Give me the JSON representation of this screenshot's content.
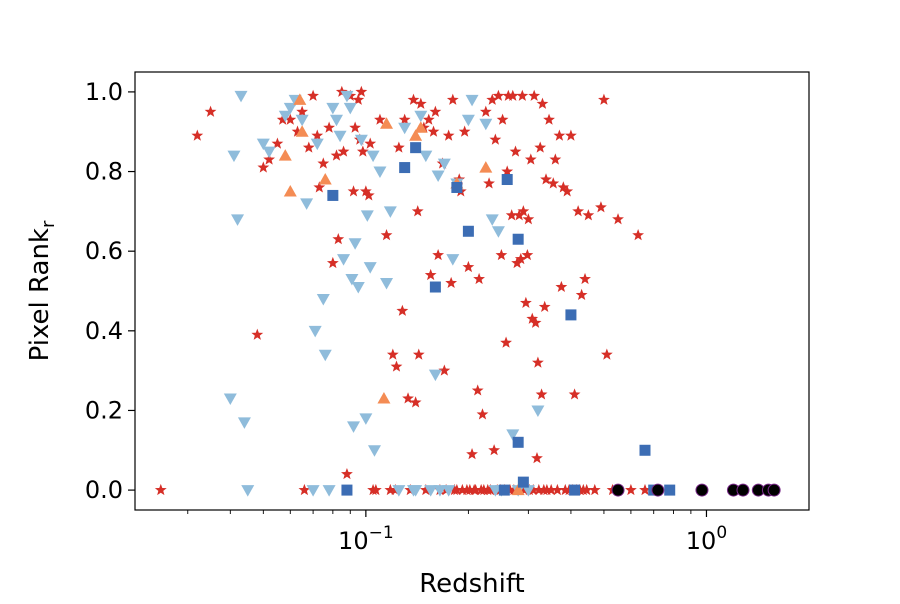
{
  "chart_data": {
    "type": "scatter",
    "title": "",
    "xlabel": "Redshift",
    "ylabel_main": "Pixel Rank",
    "ylabel_sub": "r",
    "xscale": "log",
    "xlim": [
      0.021,
      2.0
    ],
    "ylim": [
      -0.05,
      1.05
    ],
    "legend": "none",
    "grid": false,
    "y_ticks": [
      {
        "value": 0.0,
        "label": "0.0"
      },
      {
        "value": 0.2,
        "label": "0.2"
      },
      {
        "value": 0.4,
        "label": "0.4"
      },
      {
        "value": 0.6,
        "label": "0.6"
      },
      {
        "value": 0.8,
        "label": "0.8"
      },
      {
        "value": 1.0,
        "label": "1.0"
      }
    ],
    "x_ticks": [
      {
        "value": 0.1,
        "base": "10",
        "exp": "−1"
      },
      {
        "value": 1.0,
        "base": "10",
        "exp": "0"
      }
    ],
    "series": [
      {
        "marker": "star",
        "color": "#d62f27",
        "points": [
          [
            0.025,
            0.0
          ],
          [
            0.032,
            0.89
          ],
          [
            0.035,
            0.95
          ],
          [
            0.048,
            0.39
          ],
          [
            0.05,
            0.81
          ],
          [
            0.052,
            0.83
          ],
          [
            0.055,
            0.87
          ],
          [
            0.057,
            0.93
          ],
          [
            0.06,
            0.93
          ],
          [
            0.063,
            0.9
          ],
          [
            0.065,
            0.95
          ],
          [
            0.066,
            0.0
          ],
          [
            0.068,
            0.86
          ],
          [
            0.07,
            0.99
          ],
          [
            0.072,
            0.89
          ],
          [
            0.073,
            0.76
          ],
          [
            0.075,
            0.82
          ],
          [
            0.078,
            0.91
          ],
          [
            0.08,
            0.57
          ],
          [
            0.082,
            0.84
          ],
          [
            0.083,
            0.63
          ],
          [
            0.085,
            1.0
          ],
          [
            0.086,
            0.85
          ],
          [
            0.088,
            0.04
          ],
          [
            0.09,
            0.99
          ],
          [
            0.092,
            0.75
          ],
          [
            0.093,
            0.91
          ],
          [
            0.095,
            0.98
          ],
          [
            0.096,
            0.88
          ],
          [
            0.097,
            1.0
          ],
          [
            0.098,
            0.85
          ],
          [
            0.1,
            0.75
          ],
          [
            0.102,
            0.74
          ],
          [
            0.103,
            0.87
          ],
          [
            0.105,
            0.0
          ],
          [
            0.107,
            0.0
          ],
          [
            0.11,
            0.93
          ],
          [
            0.115,
            0.64
          ],
          [
            0.118,
            0.0
          ],
          [
            0.12,
            0.34
          ],
          [
            0.122,
            0.0
          ],
          [
            0.123,
            0.31
          ],
          [
            0.125,
            0.86
          ],
          [
            0.128,
            0.45
          ],
          [
            0.13,
            0.93
          ],
          [
            0.133,
            0.23
          ],
          [
            0.135,
            0.0
          ],
          [
            0.138,
            0.98
          ],
          [
            0.14,
            0.22
          ],
          [
            0.142,
            0.7
          ],
          [
            0.143,
            0.34
          ],
          [
            0.145,
            0.97
          ],
          [
            0.148,
            0.91
          ],
          [
            0.15,
            0.0
          ],
          [
            0.153,
            0.93
          ],
          [
            0.155,
            0.54
          ],
          [
            0.158,
            0.9
          ],
          [
            0.16,
            0.95
          ],
          [
            0.163,
            0.59
          ],
          [
            0.165,
            0.0
          ],
          [
            0.168,
            0.82
          ],
          [
            0.17,
            0.3
          ],
          [
            0.172,
            0.0
          ],
          [
            0.175,
            0.89
          ],
          [
            0.178,
            0.52
          ],
          [
            0.18,
            0.98
          ],
          [
            0.182,
            0.0
          ],
          [
            0.185,
            0.0
          ],
          [
            0.188,
            0.78
          ],
          [
            0.19,
            0.75
          ],
          [
            0.192,
            0.0
          ],
          [
            0.195,
            0.9
          ],
          [
            0.198,
            0.0
          ],
          [
            0.2,
            0.56
          ],
          [
            0.202,
            0.0
          ],
          [
            0.205,
            0.09
          ],
          [
            0.208,
            0.0
          ],
          [
            0.21,
            0.0
          ],
          [
            0.213,
            0.25
          ],
          [
            0.215,
            0.53
          ],
          [
            0.218,
            0.0
          ],
          [
            0.22,
            0.19
          ],
          [
            0.222,
            0.0
          ],
          [
            0.225,
            0.95
          ],
          [
            0.228,
            0.0
          ],
          [
            0.23,
            0.77
          ],
          [
            0.232,
            0.0
          ],
          [
            0.235,
            0.98
          ],
          [
            0.238,
            0.1
          ],
          [
            0.24,
            0.88
          ],
          [
            0.243,
            0.0
          ],
          [
            0.245,
            0.99
          ],
          [
            0.248,
            0.0
          ],
          [
            0.25,
            0.59
          ],
          [
            0.252,
            0.93
          ],
          [
            0.255,
            0.0
          ],
          [
            0.258,
            0.37
          ],
          [
            0.26,
            0.8
          ],
          [
            0.262,
            0.99
          ],
          [
            0.265,
            0.0
          ],
          [
            0.268,
            0.69
          ],
          [
            0.27,
            0.99
          ],
          [
            0.272,
            0.0
          ],
          [
            0.275,
            0.85
          ],
          [
            0.278,
            0.57
          ],
          [
            0.28,
            0.0
          ],
          [
            0.282,
            0.69
          ],
          [
            0.285,
            0.58
          ],
          [
            0.288,
            0.99
          ],
          [
            0.29,
            0.7
          ],
          [
            0.292,
            0.0
          ],
          [
            0.295,
            0.47
          ],
          [
            0.298,
            0.59
          ],
          [
            0.3,
            0.68
          ],
          [
            0.302,
            0.0
          ],
          [
            0.305,
            0.83
          ],
          [
            0.308,
            0.43
          ],
          [
            0.31,
            0.0
          ],
          [
            0.312,
            0.99
          ],
          [
            0.315,
            0.42
          ],
          [
            0.318,
            0.08
          ],
          [
            0.32,
            0.32
          ],
          [
            0.322,
            0.0
          ],
          [
            0.325,
            0.86
          ],
          [
            0.328,
            0.24
          ],
          [
            0.33,
            0.97
          ],
          [
            0.333,
            0.0
          ],
          [
            0.335,
            0.46
          ],
          [
            0.338,
            0.78
          ],
          [
            0.34,
            0.0
          ],
          [
            0.345,
            0.93
          ],
          [
            0.35,
            0.0
          ],
          [
            0.355,
            0.77
          ],
          [
            0.36,
            0.83
          ],
          [
            0.365,
            0.0
          ],
          [
            0.37,
            0.89
          ],
          [
            0.375,
            0.51
          ],
          [
            0.38,
            0.76
          ],
          [
            0.385,
            0.0
          ],
          [
            0.39,
            0.75
          ],
          [
            0.395,
            0.0
          ],
          [
            0.4,
            0.89
          ],
          [
            0.405,
            0.0
          ],
          [
            0.41,
            0.24
          ],
          [
            0.415,
            0.0
          ],
          [
            0.42,
            0.7
          ],
          [
            0.425,
            0.0
          ],
          [
            0.43,
            0.49
          ],
          [
            0.435,
            0.0
          ],
          [
            0.44,
            0.53
          ],
          [
            0.445,
            0.0
          ],
          [
            0.45,
            0.69
          ],
          [
            0.47,
            0.0
          ],
          [
            0.49,
            0.71
          ],
          [
            0.5,
            0.98
          ],
          [
            0.51,
            0.34
          ],
          [
            0.53,
            0.0
          ],
          [
            0.55,
            0.68
          ],
          [
            0.6,
            0.0
          ],
          [
            0.63,
            0.64
          ],
          [
            0.66,
            0.0
          ]
        ]
      },
      {
        "marker": "triangle-down",
        "color": "#8fbcdb",
        "points": [
          [
            0.04,
            0.23
          ],
          [
            0.041,
            0.84
          ],
          [
            0.042,
            0.68
          ],
          [
            0.043,
            0.99
          ],
          [
            0.044,
            0.17
          ],
          [
            0.045,
            0.0
          ],
          [
            0.05,
            0.87
          ],
          [
            0.052,
            0.85
          ],
          [
            0.058,
            0.94
          ],
          [
            0.06,
            0.96
          ],
          [
            0.062,
            0.98
          ],
          [
            0.065,
            0.93
          ],
          [
            0.067,
            0.72
          ],
          [
            0.07,
            0.0
          ],
          [
            0.071,
            0.4
          ],
          [
            0.072,
            0.87
          ],
          [
            0.075,
            0.48
          ],
          [
            0.076,
            0.34
          ],
          [
            0.078,
            0.0
          ],
          [
            0.08,
            0.96
          ],
          [
            0.082,
            0.93
          ],
          [
            0.084,
            0.89
          ],
          [
            0.086,
            0.58
          ],
          [
            0.088,
            0.99
          ],
          [
            0.09,
            0.96
          ],
          [
            0.091,
            0.53
          ],
          [
            0.092,
            0.16
          ],
          [
            0.093,
            0.62
          ],
          [
            0.095,
            0.51
          ],
          [
            0.097,
            0.88
          ],
          [
            0.1,
            0.18
          ],
          [
            0.101,
            0.69
          ],
          [
            0.103,
            0.56
          ],
          [
            0.105,
            0.84
          ],
          [
            0.106,
            0.1
          ],
          [
            0.11,
            0.8
          ],
          [
            0.115,
            0.52
          ],
          [
            0.118,
            0.7
          ],
          [
            0.125,
            0.0
          ],
          [
            0.13,
            0.91
          ],
          [
            0.138,
            0.0
          ],
          [
            0.14,
            0.0
          ],
          [
            0.145,
            0.94
          ],
          [
            0.15,
            0.84
          ],
          [
            0.155,
            0.0
          ],
          [
            0.16,
            0.29
          ],
          [
            0.163,
            0.79
          ],
          [
            0.165,
            0.0
          ],
          [
            0.17,
            0.82
          ],
          [
            0.175,
            0.0
          ],
          [
            0.18,
            0.58
          ],
          [
            0.185,
            0.77
          ],
          [
            0.2,
            0.93
          ],
          [
            0.205,
            0.98
          ],
          [
            0.225,
            0.92
          ],
          [
            0.235,
            0.68
          ],
          [
            0.24,
            0.0
          ],
          [
            0.245,
            0.65
          ],
          [
            0.25,
            0.0
          ],
          [
            0.27,
            0.14
          ],
          [
            0.28,
            0.0
          ],
          [
            0.3,
            0.0
          ],
          [
            0.32,
            0.2
          ]
        ]
      },
      {
        "marker": "triangle-up",
        "color": "#f48c54",
        "points": [
          [
            0.058,
            0.84
          ],
          [
            0.06,
            0.75
          ],
          [
            0.064,
            0.98
          ],
          [
            0.065,
            0.9
          ],
          [
            0.076,
            0.78
          ],
          [
            0.113,
            0.23
          ],
          [
            0.115,
            0.92
          ],
          [
            0.14,
            0.89
          ],
          [
            0.145,
            0.91
          ],
          [
            0.185,
            0.77
          ],
          [
            0.225,
            0.81
          ],
          [
            0.28,
            0.0
          ]
        ]
      },
      {
        "marker": "square",
        "color": "#3c6db4",
        "points": [
          [
            0.08,
            0.74
          ],
          [
            0.088,
            0.0
          ],
          [
            0.13,
            0.81
          ],
          [
            0.14,
            0.86
          ],
          [
            0.16,
            0.51
          ],
          [
            0.185,
            0.76
          ],
          [
            0.2,
            0.65
          ],
          [
            0.255,
            0.0
          ],
          [
            0.26,
            0.78
          ],
          [
            0.28,
            0.63
          ],
          [
            0.28,
            0.12
          ],
          [
            0.29,
            0.02
          ],
          [
            0.4,
            0.44
          ],
          [
            0.41,
            0.0
          ],
          [
            0.66,
            0.1
          ],
          [
            0.7,
            0.0
          ],
          [
            0.78,
            0.0
          ]
        ]
      },
      {
        "marker": "circle",
        "color": "#000000",
        "edge": "#7a2a8a",
        "points": [
          [
            0.55,
            0.0
          ],
          [
            0.72,
            0.0
          ],
          [
            0.97,
            0.0
          ],
          [
            1.2,
            0.0
          ],
          [
            1.28,
            0.0
          ],
          [
            1.42,
            0.0
          ],
          [
            1.52,
            0.0
          ],
          [
            1.58,
            0.0
          ]
        ]
      }
    ]
  }
}
